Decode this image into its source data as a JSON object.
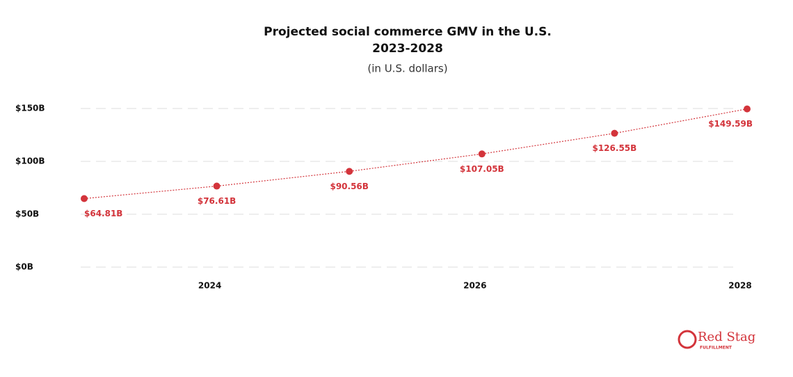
{
  "chart_data": {
    "type": "line",
    "title": [
      "Projected social commerce GMV in the U.S.",
      "2023-2028"
    ],
    "subtitle": "(in U.S. dollars)",
    "x": [
      2023,
      2024,
      2025,
      2026,
      2027,
      2028
    ],
    "series": [
      {
        "name": "Social commerce GMV",
        "color": "#d3343b",
        "values": [
          64.81,
          76.61,
          90.56,
          107.05,
          126.55,
          149.59
        ],
        "value_labels": [
          "$64.81B",
          "$76.61B",
          "$90.56B",
          "$107.05B",
          "$126.55B",
          "$149.59B"
        ]
      }
    ],
    "xlim": [
      2023,
      2028
    ],
    "xticks": [
      2024,
      2026,
      2028
    ],
    "ylim": [
      0,
      150
    ],
    "yticks": [
      {
        "value": 0,
        "label": "$0B"
      },
      {
        "value": 50,
        "label": "$50B"
      },
      {
        "value": 100,
        "label": "$100B"
      },
      {
        "value": 150,
        "label": "$150B"
      }
    ],
    "grid": true
  },
  "logo": {
    "name": "Red Stag",
    "sub": "FULFILLMENT"
  }
}
